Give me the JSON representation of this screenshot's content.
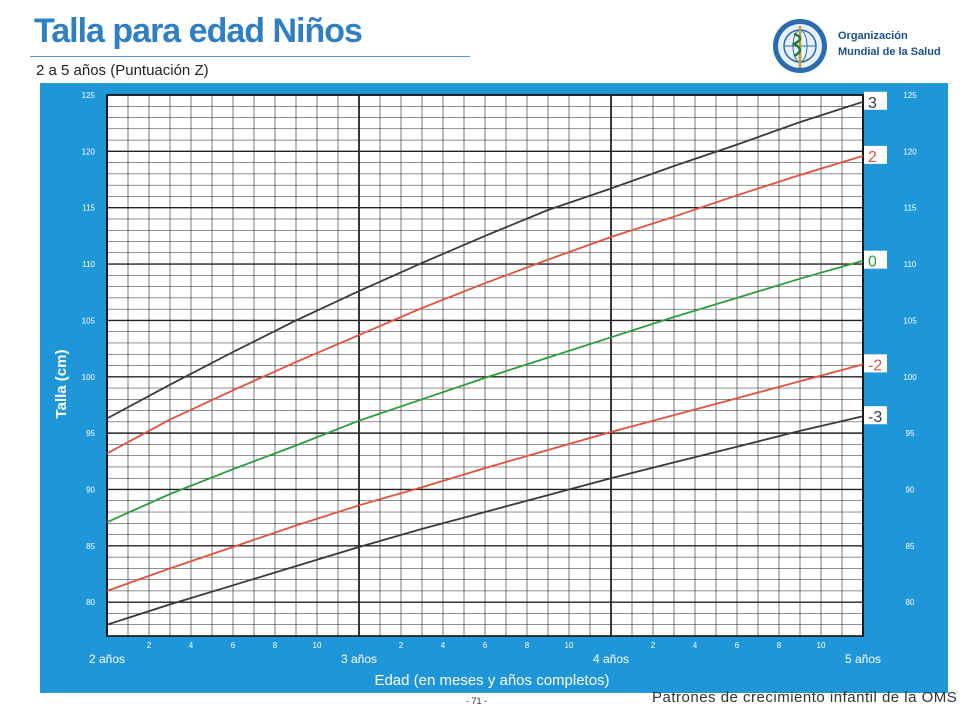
{
  "header": {
    "title": "Talla para edad Niños",
    "subtitle": "2 a 5 años (Puntuación Z)"
  },
  "org": {
    "line1": "Organización",
    "line2": "Mundial de la Salud"
  },
  "footer": {
    "page_number": "- 71 -",
    "publication": "Patrones de crecimiento infantil de la OMS"
  },
  "colors": {
    "panel": "#1f96d8",
    "grid": "#222222",
    "black_curve": "#3a3a3a",
    "red_curve": "#e0533f",
    "green_curve": "#2e9b3f"
  },
  "chart_data": {
    "type": "line",
    "title": "Talla para edad Niños",
    "subtitle": "2 a 5 años (Puntuación Z)",
    "xlabel": "Edad (en meses y años completos)",
    "ylabel": "Talla (cm)",
    "x_unit": "months since 2 años",
    "xlim": [
      0,
      36
    ],
    "ylim": [
      77,
      125
    ],
    "y_ticks": [
      80,
      85,
      90,
      95,
      100,
      105,
      110,
      115,
      120,
      125
    ],
    "x_major_labels": [
      {
        "x": 0,
        "label": "2 años"
      },
      {
        "x": 12,
        "label": "3 años"
      },
      {
        "x": 24,
        "label": "4 años"
      },
      {
        "x": 36,
        "label": "5 años"
      }
    ],
    "x_minor_labels": [
      {
        "x": 2,
        "label": "2"
      },
      {
        "x": 4,
        "label": "4"
      },
      {
        "x": 6,
        "label": "6"
      },
      {
        "x": 8,
        "label": "8"
      },
      {
        "x": 10,
        "label": "10"
      },
      {
        "x": 14,
        "label": "2"
      },
      {
        "x": 16,
        "label": "4"
      },
      {
        "x": 18,
        "label": "6"
      },
      {
        "x": 20,
        "label": "8"
      },
      {
        "x": 22,
        "label": "10"
      },
      {
        "x": 26,
        "label": "2"
      },
      {
        "x": 28,
        "label": "4"
      },
      {
        "x": 30,
        "label": "6"
      },
      {
        "x": 32,
        "label": "8"
      },
      {
        "x": 34,
        "label": "10"
      }
    ],
    "x": [
      0,
      3,
      6,
      9,
      12,
      15,
      18,
      21,
      24,
      27,
      30,
      33,
      36
    ],
    "series": [
      {
        "name": "3",
        "color": "#3a3a3a",
        "values": [
          96.3,
          99.3,
          102.2,
          105.0,
          107.6,
          110.1,
          112.5,
          114.8,
          116.7,
          118.7,
          120.6,
          122.6,
          124.4
        ]
      },
      {
        "name": "2",
        "color": "#e0533f",
        "values": [
          93.2,
          96.2,
          98.8,
          101.3,
          103.7,
          106.1,
          108.3,
          110.4,
          112.4,
          114.2,
          116.1,
          117.9,
          119.6
        ]
      },
      {
        "name": "0",
        "color": "#2e9b3f",
        "values": [
          87.1,
          89.6,
          91.8,
          93.9,
          96.1,
          98.0,
          99.9,
          101.7,
          103.5,
          105.3,
          107.0,
          108.7,
          110.3
        ]
      },
      {
        "name": "-2",
        "color": "#e0533f",
        "values": [
          81.0,
          83.0,
          84.9,
          86.8,
          88.6,
          90.2,
          91.9,
          93.5,
          95.1,
          96.6,
          98.1,
          99.6,
          101.1
        ]
      },
      {
        "name": "-3",
        "color": "#3a3a3a",
        "values": [
          78.0,
          79.8,
          81.5,
          83.2,
          84.9,
          86.5,
          88.0,
          89.5,
          91.0,
          92.4,
          93.8,
          95.2,
          96.5
        ]
      }
    ]
  }
}
